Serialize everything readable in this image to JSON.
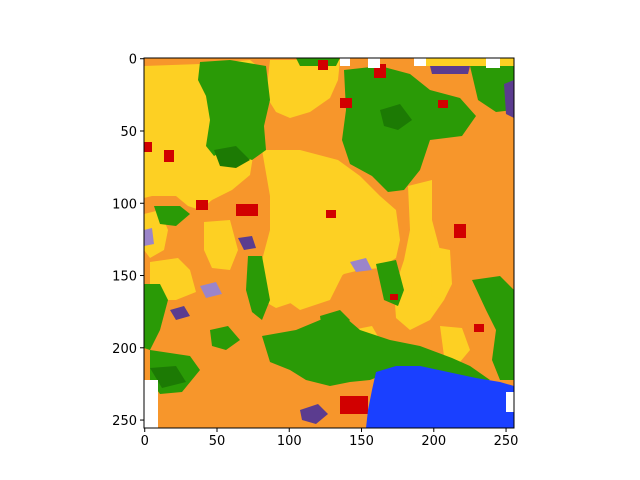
{
  "image": {
    "description": "land-cover classification raster (matplotlib imshow)",
    "grid_size": [
      256,
      256
    ],
    "palette": {
      "yellow": "#fdd023",
      "orange": "#f7962b",
      "green": "#2a9a06",
      "darkgreen": "#1c7a04",
      "red": "#d10000",
      "purple": "#5b3c8f",
      "lavender": "#9b85c9",
      "blue": "#1a40ff",
      "white": "#ffffff"
    }
  },
  "axes": {
    "x_ticks": [
      "0",
      "50",
      "100",
      "150",
      "200",
      "250"
    ],
    "y_ticks": [
      "0",
      "50",
      "100",
      "150",
      "200",
      "250"
    ],
    "x_tick_values": [
      0,
      50,
      100,
      150,
      200,
      250
    ],
    "y_tick_values": [
      0,
      50,
      100,
      150,
      200,
      250
    ],
    "xlim": [
      -0.5,
      255.5
    ],
    "ylim": [
      255.5,
      -0.5
    ]
  }
}
